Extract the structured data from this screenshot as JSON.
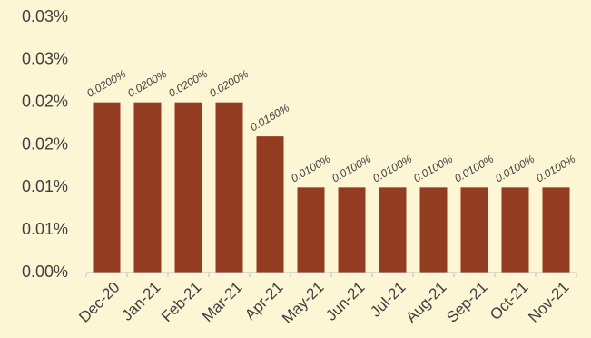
{
  "chart_data": {
    "type": "bar",
    "categories": [
      "Dec-20",
      "Jan-21",
      "Feb-21",
      "Mar-21",
      "Apr-21",
      "May-21",
      "Jun-21",
      "Jul-21",
      "Aug-21",
      "Sep-21",
      "Oct-21",
      "Nov-21"
    ],
    "values": [
      0.02,
      0.02,
      0.02,
      0.02,
      0.016,
      0.01,
      0.01,
      0.01,
      0.01,
      0.01,
      0.01,
      0.01
    ],
    "value_labels": [
      "0.0200%",
      "0.0200%",
      "0.0200%",
      "0.0200%",
      "0.0160%",
      "0.0100%",
      "0.0100%",
      "0.0100%",
      "0.0100%",
      "0.0100%",
      "0.0100%",
      "0.0100%"
    ],
    "color": "#933c21",
    "ylim": [
      0,
      0.03
    ],
    "yticks": [
      {
        "value": 0,
        "label": "0.00%"
      },
      {
        "value": 0.005,
        "label": "0.01%"
      },
      {
        "value": 0.01,
        "label": "0.01%"
      },
      {
        "value": 0.015,
        "label": "0.02%"
      },
      {
        "value": 0.02,
        "label": "0.02%"
      },
      {
        "value": 0.025,
        "label": "0.03%"
      },
      {
        "value": 0.03,
        "label": "0.03%"
      }
    ],
    "grid": false
  }
}
